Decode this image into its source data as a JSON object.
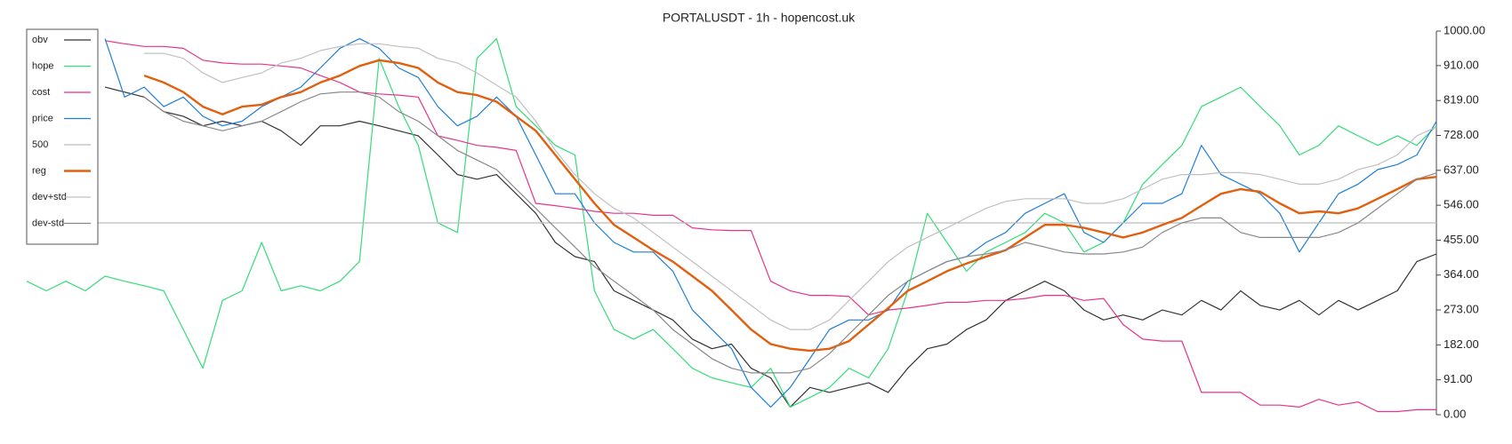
{
  "chart_data": {
    "type": "line",
    "title": "PORTALUSDT - 1h - hopencost.uk",
    "ylim": [
      0,
      1000
    ],
    "yticks": [
      {
        "value": 0,
        "label": "0.00"
      },
      {
        "value": 91,
        "label": "91.00"
      },
      {
        "value": 182,
        "label": "182.00"
      },
      {
        "value": 273,
        "label": "273.00"
      },
      {
        "value": 364,
        "label": "364.00"
      },
      {
        "value": 455,
        "label": "455.00"
      },
      {
        "value": 546,
        "label": "546.00"
      },
      {
        "value": 637,
        "label": "637.00"
      },
      {
        "value": 728,
        "label": "728.00"
      },
      {
        "value": 819,
        "label": "819.00"
      },
      {
        "value": 910,
        "label": "910.00"
      },
      {
        "value": 1000,
        "label": "1000.00"
      }
    ],
    "legend": "upper left",
    "series": [
      {
        "name": "obv",
        "color": "#333333",
        "values": [
          null,
          null,
          null,
          null,
          854,
          841,
          828,
          790,
          778,
          753,
          765,
          753,
          765,
          740,
          702,
          753,
          753,
          765,
          753,
          740,
          727,
          677,
          626,
          614,
          626,
          576,
          525,
          449,
          412,
          399,
          323,
          298,
          273,
          247,
          197,
          172,
          184,
          121,
          96,
          20,
          71,
          58,
          71,
          83,
          58,
          121,
          172,
          184,
          222,
          247,
          298,
          323,
          348,
          323,
          273,
          247,
          260,
          247,
          273,
          260,
          298,
          273,
          323,
          285,
          273,
          298,
          260,
          298,
          273,
          298,
          323,
          399,
          419
        ]
      },
      {
        "name": "hope",
        "color": "#33dd77",
        "values": [
          348,
          323,
          348,
          323,
          361,
          348,
          336,
          323,
          222,
          121,
          298,
          323,
          449,
          323,
          336,
          323,
          348,
          399,
          929,
          803,
          702,
          500,
          475,
          929,
          980,
          803,
          753,
          702,
          677,
          323,
          222,
          197,
          222,
          172,
          121,
          96,
          83,
          71,
          121,
          20,
          45,
          71,
          121,
          96,
          172,
          323,
          525,
          449,
          374,
          424,
          449,
          475,
          525,
          500,
          424,
          449,
          500,
          601,
          652,
          702,
          803,
          828,
          854,
          803,
          753,
          677,
          702,
          753,
          727,
          702,
          727,
          702,
          753
        ]
      },
      {
        "name": "cost",
        "color": "#e8338a",
        "values": [
          null,
          null,
          null,
          null,
          975,
          967,
          960,
          960,
          955,
          924,
          917,
          914,
          914,
          909,
          904,
          884,
          866,
          841,
          836,
          833,
          828,
          727,
          715,
          702,
          697,
          689,
          551,
          545,
          538,
          530,
          525,
          525,
          520,
          520,
          487,
          482,
          480,
          480,
          348,
          323,
          311,
          311,
          308,
          260,
          273,
          278,
          285,
          293,
          293,
          298,
          298,
          303,
          311,
          311,
          298,
          303,
          235,
          197,
          192,
          192,
          58,
          58,
          58,
          25,
          25,
          20,
          40,
          25,
          33,
          8,
          8,
          13,
          13
        ]
      },
      {
        "name": "price",
        "color": "#1f7fd6",
        "values": [
          null,
          null,
          null,
          null,
          980,
          828,
          854,
          803,
          828,
          778,
          753,
          765,
          803,
          828,
          854,
          904,
          955,
          980,
          955,
          904,
          879,
          803,
          753,
          778,
          828,
          778,
          677,
          576,
          576,
          500,
          449,
          424,
          424,
          374,
          273,
          222,
          172,
          71,
          20,
          71,
          146,
          222,
          247,
          247,
          273,
          348,
          374,
          399,
          412,
          449,
          475,
          525,
          551,
          576,
          475,
          449,
          500,
          551,
          551,
          576,
          702,
          626,
          601,
          576,
          525,
          424,
          500,
          576,
          601,
          639,
          652,
          677,
          765
        ]
      },
      {
        "name": "500",
        "color": "#bbbbbb",
        "values": [
          500,
          500,
          500,
          500,
          500,
          500,
          500,
          500,
          500,
          500,
          500,
          500,
          500,
          500,
          500,
          500,
          500,
          500,
          500,
          500,
          500,
          500,
          500,
          500,
          500,
          500,
          500,
          500,
          500,
          500,
          500,
          500,
          500,
          500,
          500,
          500,
          500,
          500,
          500,
          500,
          500,
          500,
          500,
          500,
          500,
          500,
          500,
          500,
          500,
          500,
          500,
          500,
          500,
          500,
          500,
          500,
          500,
          500,
          500,
          500,
          500,
          500,
          500,
          500,
          500,
          500,
          500,
          500,
          500,
          500,
          500,
          500,
          500
        ]
      },
      {
        "name": "reg",
        "color": "#e06010",
        "values": [
          null,
          null,
          null,
          null,
          null,
          null,
          884,
          866,
          841,
          803,
          783,
          803,
          808,
          828,
          841,
          866,
          884,
          909,
          924,
          917,
          904,
          866,
          841,
          833,
          816,
          778,
          740,
          677,
          614,
          551,
          495,
          462,
          429,
          399,
          361,
          323,
          273,
          222,
          184,
          172,
          167,
          172,
          192,
          235,
          278,
          323,
          348,
          374,
          394,
          412,
          429,
          462,
          495,
          495,
          487,
          475,
          462,
          475,
          495,
          513,
          545,
          576,
          588,
          581,
          551,
          525,
          530,
          525,
          538,
          563,
          588,
          614,
          620
        ]
      },
      {
        "name": "dev+std",
        "color": "#c0c0c0",
        "values": [
          null,
          null,
          null,
          null,
          null,
          null,
          942,
          942,
          929,
          891,
          866,
          879,
          891,
          917,
          929,
          949,
          960,
          967,
          967,
          960,
          955,
          929,
          917,
          891,
          859,
          828,
          765,
          689,
          626,
          576,
          538,
          513,
          475,
          437,
          399,
          361,
          323,
          285,
          247,
          222,
          222,
          247,
          298,
          348,
          399,
          437,
          462,
          487,
          513,
          538,
          556,
          563,
          563,
          563,
          551,
          551,
          563,
          588,
          614,
          626,
          626,
          631,
          631,
          626,
          614,
          601,
          601,
          614,
          639,
          652,
          677,
          727,
          750
        ]
      },
      {
        "name": "dev-std",
        "color": "#888888",
        "values": [
          null,
          null,
          null,
          null,
          null,
          null,
          828,
          790,
          765,
          753,
          740,
          753,
          765,
          790,
          816,
          836,
          841,
          841,
          828,
          790,
          765,
          727,
          689,
          664,
          639,
          588,
          538,
          487,
          437,
          386,
          348,
          311,
          273,
          222,
          184,
          146,
          121,
          109,
          109,
          109,
          121,
          159,
          210,
          260,
          311,
          348,
          374,
          399,
          412,
          419,
          429,
          449,
          437,
          424,
          419,
          419,
          424,
          437,
          475,
          500,
          513,
          513,
          475,
          462,
          462,
          462,
          462,
          475,
          500,
          538,
          576,
          614,
          630
        ]
      }
    ]
  }
}
